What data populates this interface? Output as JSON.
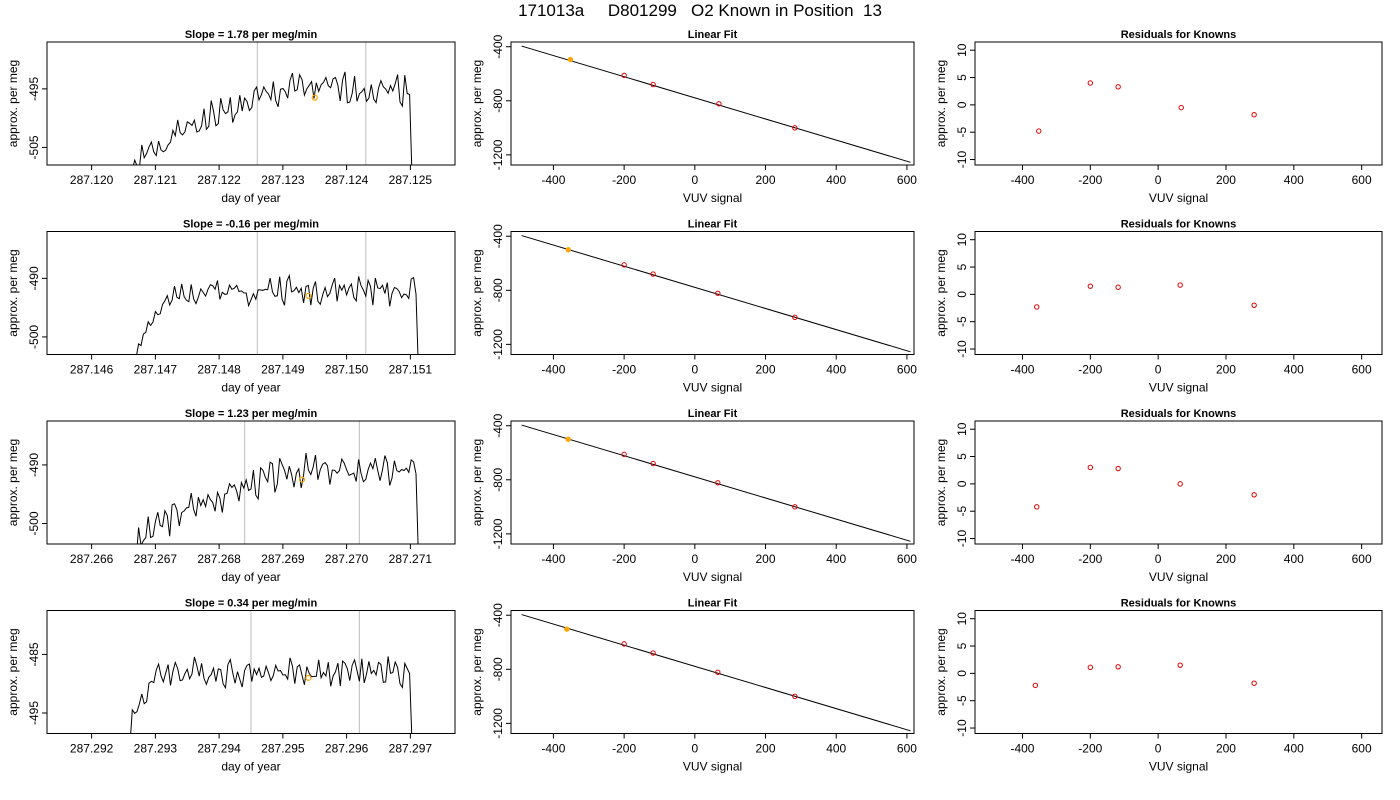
{
  "figure_title": "171013a     D801299   O2 Known in Position  13",
  "colors": {
    "trace": "#000000",
    "vline": "#c8c8c8",
    "highlight": "#ffa500",
    "fit_line": "#000000",
    "residual_point": "#e00000",
    "frame": "#000000"
  },
  "chart_data": [
    {
      "type": "line",
      "title": "Slope =  1.78  per meg/min",
      "xlabel": "day of year",
      "ylabel": "approx. per meg",
      "xlim": [
        287.1193,
        287.1257
      ],
      "ylim": [
        -508.0,
        -487.0
      ],
      "xticks": [
        "287.120",
        "287.121",
        "287.122",
        "287.123",
        "287.124",
        "287.125"
      ],
      "yticks": [
        "-495",
        "-505"
      ],
      "xticks_values": [
        287.12,
        287.121,
        287.122,
        287.123,
        287.124,
        287.125
      ],
      "yticks_values": [
        -495,
        -505
      ],
      "vlines": [
        287.1226,
        287.1243
      ],
      "highlight_point": {
        "x": 287.1235,
        "y": -496.5
      },
      "trace": {
        "x_start": 287.1206,
        "x_end": 287.1251,
        "n": 120,
        "y_start": -511,
        "y_plateau": -495,
        "amp": 2.0,
        "rise_end": 287.1231,
        "seed": 1,
        "drop_to": -510
      }
    },
    {
      "type": "scatter",
      "title": "Linear Fit",
      "xlabel": "VUV signal",
      "ylabel": "approx. per meg",
      "xlim": [
        -520,
        620
      ],
      "ylim": [
        -1275,
        -365
      ],
      "xticks": [
        "-400",
        "-200",
        "0",
        "200",
        "400",
        "600"
      ],
      "yticks": [
        "-400",
        "-800",
        "-1200"
      ],
      "xticks_values": [
        -400,
        -200,
        0,
        200,
        400,
        600
      ],
      "yticks_values": [
        -400,
        -800,
        -1200
      ],
      "fit_line": {
        "x": [
          -490,
          610
        ],
        "y": [
          -395,
          -1255
        ]
      },
      "points": {
        "x": [
          -352,
          -200,
          -118,
          68,
          283
        ],
        "y": [
          -495,
          -612,
          -680,
          -822,
          -1000
        ]
      },
      "highlight_index": 0
    },
    {
      "type": "scatter",
      "title": "Residuals for Knowns",
      "xlabel": "VUV signal",
      "ylabel": "approx. per meg",
      "xlim": [
        -540,
        660
      ],
      "ylim": [
        -11,
        11.5
      ],
      "xticks": [
        "-400",
        "-200",
        "0",
        "200",
        "400",
        "600"
      ],
      "yticks": [
        "10",
        "5",
        "0",
        "-5",
        "-10"
      ],
      "xticks_values": [
        -400,
        -200,
        0,
        200,
        400,
        600
      ],
      "yticks_values": [
        10,
        5,
        0,
        -5,
        -10
      ],
      "points": {
        "x": [
          -352,
          -200,
          -118,
          68,
          283
        ],
        "y": [
          -4.8,
          4.0,
          3.3,
          -0.5,
          -1.8
        ]
      }
    },
    {
      "type": "line",
      "title": "Slope =  -0.16  per meg/min",
      "xlabel": "day of year",
      "ylabel": "approx. per meg",
      "xlim": [
        287.1453,
        287.1517
      ],
      "ylim": [
        -503.0,
        -482.0
      ],
      "xticks": [
        "287.146",
        "287.147",
        "287.148",
        "287.149",
        "287.150",
        "287.151"
      ],
      "yticks": [
        "-490",
        "-500"
      ],
      "xticks_values": [
        287.146,
        287.147,
        287.148,
        287.149,
        287.15,
        287.151
      ],
      "yticks_values": [
        -490,
        -500
      ],
      "vlines": [
        287.1486,
        287.1503
      ],
      "highlight_point": {
        "x": 287.1494,
        "y": -493.0
      },
      "trace": {
        "x_start": 287.1467,
        "x_end": 287.1512,
        "n": 120,
        "y_start": -503,
        "y_plateau": -492,
        "amp": 1.8,
        "rise_end": 287.1475,
        "seed": 2,
        "drop_to": -505
      }
    },
    {
      "type": "scatter",
      "title": "Linear Fit",
      "xlabel": "VUV signal",
      "ylabel": "approx. per meg",
      "xlim": [
        -520,
        620
      ],
      "ylim": [
        -1275,
        -365
      ],
      "xticks": [
        "-400",
        "-200",
        "0",
        "200",
        "400",
        "600"
      ],
      "yticks": [
        "-400",
        "-800",
        "-1200"
      ],
      "xticks_values": [
        -400,
        -200,
        0,
        200,
        400,
        600
      ],
      "yticks_values": [
        -400,
        -800,
        -1200
      ],
      "fit_line": {
        "x": [
          -490,
          610
        ],
        "y": [
          -395,
          -1255
        ]
      },
      "points": {
        "x": [
          -358,
          -200,
          -118,
          65,
          283
        ],
        "y": [
          -500,
          -612,
          -680,
          -822,
          -1000
        ]
      },
      "highlight_index": 0
    },
    {
      "type": "scatter",
      "title": "Residuals for Knowns",
      "xlabel": "VUV signal",
      "ylabel": "approx. per meg",
      "xlim": [
        -540,
        660
      ],
      "ylim": [
        -11,
        11.5
      ],
      "xticks": [
        "-400",
        "-200",
        "0",
        "200",
        "400",
        "600"
      ],
      "yticks": [
        "10",
        "5",
        "0",
        "-5",
        "-10"
      ],
      "xticks_values": [
        -400,
        -200,
        0,
        200,
        400,
        600
      ],
      "yticks_values": [
        10,
        5,
        0,
        -5,
        -10
      ],
      "points": {
        "x": [
          -358,
          -200,
          -118,
          65,
          283
        ],
        "y": [
          -2.3,
          1.5,
          1.3,
          1.7,
          -2.0
        ]
      }
    },
    {
      "type": "line",
      "title": "Slope =  1.23  per meg/min",
      "xlabel": "day of year",
      "ylabel": "approx. per meg",
      "xlim": [
        287.2653,
        287.2717
      ],
      "ylim": [
        -503.5,
        -482.5
      ],
      "xticks": [
        "287.266",
        "287.267",
        "287.268",
        "287.269",
        "287.270",
        "287.271"
      ],
      "yticks": [
        "-490",
        "-500"
      ],
      "xticks_values": [
        287.266,
        287.267,
        287.268,
        287.269,
        287.27,
        287.271
      ],
      "yticks_values": [
        -490,
        -500
      ],
      "vlines": [
        287.2684,
        287.2702
      ],
      "highlight_point": {
        "x": 287.2693,
        "y": -492.5
      },
      "trace": {
        "x_start": 287.2667,
        "x_end": 287.2712,
        "n": 120,
        "y_start": -505,
        "y_plateau": -491,
        "amp": 2.0,
        "rise_end": 287.2692,
        "seed": 3,
        "drop_to": -505
      }
    },
    {
      "type": "scatter",
      "title": "Linear Fit",
      "xlabel": "VUV signal",
      "ylabel": "approx. per meg",
      "xlim": [
        -520,
        620
      ],
      "ylim": [
        -1275,
        -365
      ],
      "xticks": [
        "-400",
        "-200",
        "0",
        "200",
        "400",
        "600"
      ],
      "yticks": [
        "-400",
        "-800",
        "-1200"
      ],
      "xticks_values": [
        -400,
        -200,
        0,
        200,
        400,
        600
      ],
      "yticks_values": [
        -400,
        -800,
        -1200
      ],
      "fit_line": {
        "x": [
          -490,
          610
        ],
        "y": [
          -395,
          -1255
        ]
      },
      "points": {
        "x": [
          -358,
          -200,
          -118,
          65,
          283
        ],
        "y": [
          -500,
          -612,
          -680,
          -822,
          -1000
        ]
      },
      "highlight_index": 0
    },
    {
      "type": "scatter",
      "title": "Residuals for Knowns",
      "xlabel": "VUV signal",
      "ylabel": "approx. per meg",
      "xlim": [
        -540,
        660
      ],
      "ylim": [
        -11,
        11.5
      ],
      "xticks": [
        "-400",
        "-200",
        "0",
        "200",
        "400",
        "600"
      ],
      "yticks": [
        "10",
        "5",
        "0",
        "-5",
        "-10"
      ],
      "xticks_values": [
        -400,
        -200,
        0,
        200,
        400,
        600
      ],
      "yticks_values": [
        10,
        5,
        0,
        -5,
        -10
      ],
      "points": {
        "x": [
          -358,
          -200,
          -118,
          65,
          283
        ],
        "y": [
          -4.2,
          3.0,
          2.8,
          0.0,
          -2.0
        ]
      }
    },
    {
      "type": "line",
      "title": "Slope =  0.34  per meg/min",
      "xlabel": "day of year",
      "ylabel": "approx. per meg",
      "xlim": [
        287.2913,
        287.2977
      ],
      "ylim": [
        -498.5,
        -477.5
      ],
      "xticks": [
        "287.292",
        "287.293",
        "287.294",
        "287.295",
        "287.296",
        "287.297"
      ],
      "yticks": [
        "-485",
        "-495"
      ],
      "xticks_values": [
        287.292,
        287.293,
        287.294,
        287.295,
        287.296,
        287.297
      ],
      "yticks_values": [
        -485,
        -495
      ],
      "vlines": [
        287.2945,
        287.2962
      ],
      "highlight_point": {
        "x": 287.2954,
        "y": -489.0
      },
      "trace": {
        "x_start": 287.2926,
        "x_end": 287.2971,
        "n": 120,
        "y_start": -499,
        "y_plateau": -488,
        "amp": 1.8,
        "rise_end": 287.2931,
        "seed": 4,
        "drop_to": -500
      }
    },
    {
      "type": "scatter",
      "title": "Linear Fit",
      "xlabel": "VUV signal",
      "ylabel": "approx. per meg",
      "xlim": [
        -520,
        620
      ],
      "ylim": [
        -1275,
        -365
      ],
      "xticks": [
        "-400",
        "-200",
        "0",
        "200",
        "400",
        "600"
      ],
      "yticks": [
        "-400",
        "-800",
        "-1200"
      ],
      "xticks_values": [
        -400,
        -200,
        0,
        200,
        400,
        600
      ],
      "yticks_values": [
        -400,
        -800,
        -1200
      ],
      "fit_line": {
        "x": [
          -490,
          610
        ],
        "y": [
          -395,
          -1255
        ]
      },
      "points": {
        "x": [
          -362,
          -200,
          -118,
          65,
          283
        ],
        "y": [
          -503,
          -612,
          -680,
          -822,
          -1000
        ]
      },
      "highlight_index": 0
    },
    {
      "type": "scatter",
      "title": "Residuals for Knowns",
      "xlabel": "VUV signal",
      "ylabel": "approx. per meg",
      "xlim": [
        -540,
        660
      ],
      "ylim": [
        -11,
        11.5
      ],
      "xticks": [
        "-400",
        "-200",
        "0",
        "200",
        "400",
        "600"
      ],
      "yticks": [
        "10",
        "5",
        "0",
        "-5",
        "-10"
      ],
      "xticks_values": [
        -400,
        -200,
        0,
        200,
        400,
        600
      ],
      "yticks_values": [
        10,
        5,
        0,
        -5,
        -10
      ],
      "points": {
        "x": [
          -362,
          -200,
          -118,
          65,
          283
        ],
        "y": [
          -2.2,
          1.1,
          1.2,
          1.5,
          -1.8
        ]
      }
    }
  ]
}
